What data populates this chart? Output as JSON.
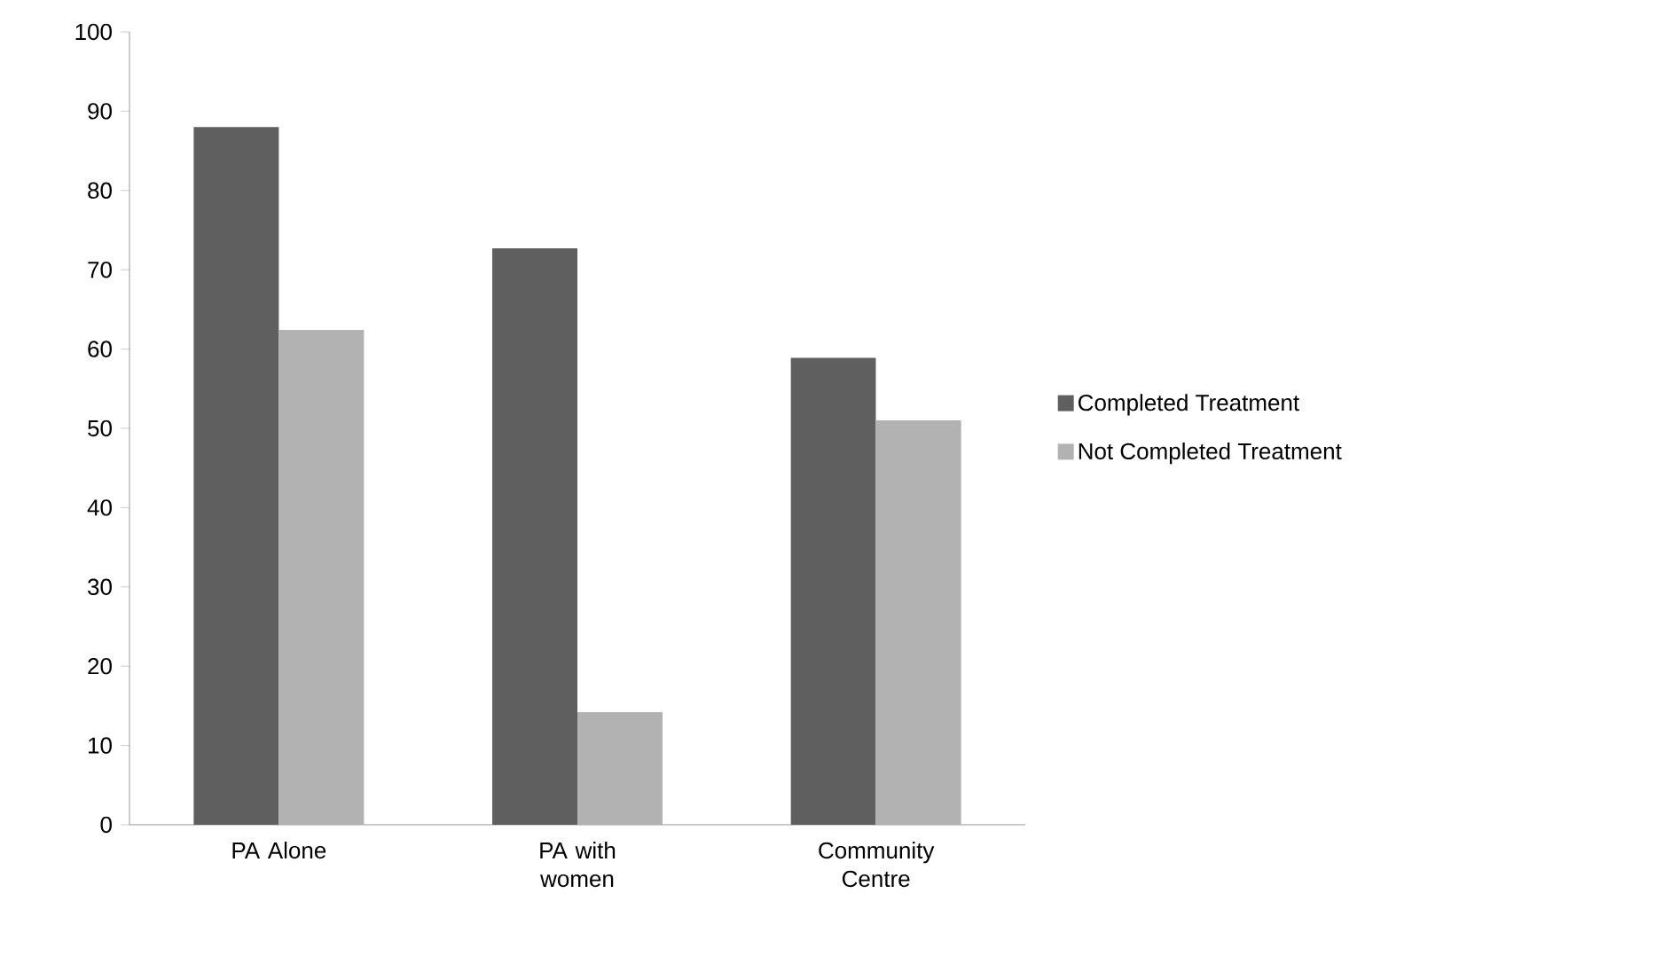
{
  "chart_data": {
    "type": "bar",
    "categories": [
      "PA Alone",
      "PA with women",
      "Community Centre"
    ],
    "series": [
      {
        "name": "Completed Treatment",
        "color": "#5f5f5f",
        "values": [
          88.0,
          72.7,
          58.9
        ]
      },
      {
        "name": "Not Completed Treatment",
        "color": "#b2b2b2",
        "values": [
          62.4,
          14.2,
          51.0
        ]
      }
    ],
    "ylim": [
      0,
      100
    ],
    "yticks": [
      0,
      10,
      20,
      30,
      40,
      50,
      60,
      70,
      80,
      90,
      100
    ],
    "grid": false,
    "legend": "right"
  }
}
